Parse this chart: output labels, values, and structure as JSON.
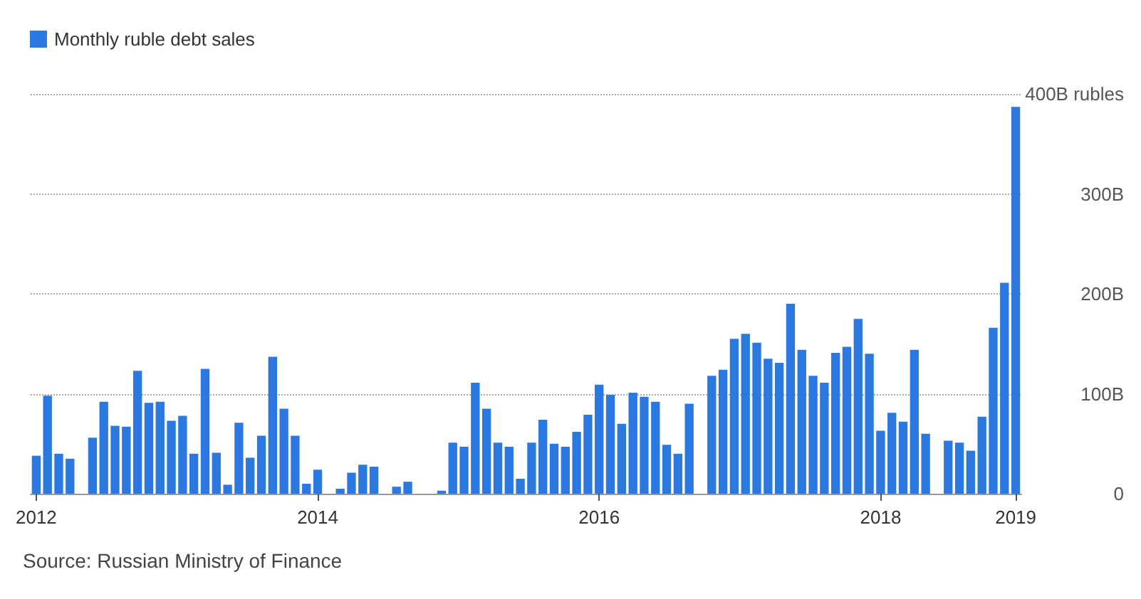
{
  "chart_data": {
    "type": "bar",
    "categories": [
      "2012",
      null,
      null,
      null,
      null,
      null,
      null,
      null,
      null,
      null,
      null,
      null,
      null,
      null,
      null,
      null,
      null,
      null,
      null,
      null,
      null,
      null,
      null,
      null,
      null,
      "2014",
      null,
      null,
      null,
      null,
      null,
      null,
      null,
      null,
      null,
      null,
      null,
      null,
      null,
      null,
      null,
      null,
      null,
      null,
      null,
      null,
      null,
      null,
      null,
      null,
      "2016",
      null,
      null,
      null,
      null,
      null,
      null,
      null,
      null,
      null,
      null,
      null,
      null,
      null,
      null,
      null,
      null,
      null,
      null,
      null,
      null,
      null,
      null,
      null,
      null,
      "2018",
      null,
      null,
      null,
      null,
      null,
      null,
      null,
      null,
      null,
      null,
      null,
      "2019"
    ],
    "series": [
      {
        "name": "Monthly ruble debt sales",
        "color": "#2a78e0",
        "values": [
          38,
          98,
          40,
          35,
          0,
          56,
          92,
          68,
          67,
          123,
          91,
          92,
          73,
          78,
          40,
          125,
          41,
          9,
          71,
          36,
          58,
          137,
          85,
          58,
          10,
          24,
          0,
          5,
          21,
          29,
          27,
          0,
          7,
          12,
          0,
          0,
          3,
          51,
          47,
          111,
          85,
          51,
          47,
          15,
          51,
          74,
          50,
          47,
          62,
          79,
          109,
          99,
          70,
          101,
          97,
          92,
          49,
          40,
          90,
          0,
          118,
          124,
          155,
          160,
          151,
          135,
          131,
          190,
          144,
          118,
          111,
          141,
          147,
          175,
          140,
          63,
          81,
          72,
          144,
          60,
          0,
          53,
          51,
          43,
          77,
          166,
          211,
          387
        ]
      }
    ],
    "ylim": [
      0,
      400
    ],
    "yticks": [
      {
        "value": 0,
        "label": "0"
      },
      {
        "value": 100,
        "label": "100B"
      },
      {
        "value": 200,
        "label": "200B"
      },
      {
        "value": 300,
        "label": "300B"
      },
      {
        "value": 400,
        "label": "400B rubles"
      }
    ],
    "grid": "y",
    "legend": "top left",
    "annotations": [
      "Source: Russian Ministry of Finance"
    ]
  }
}
